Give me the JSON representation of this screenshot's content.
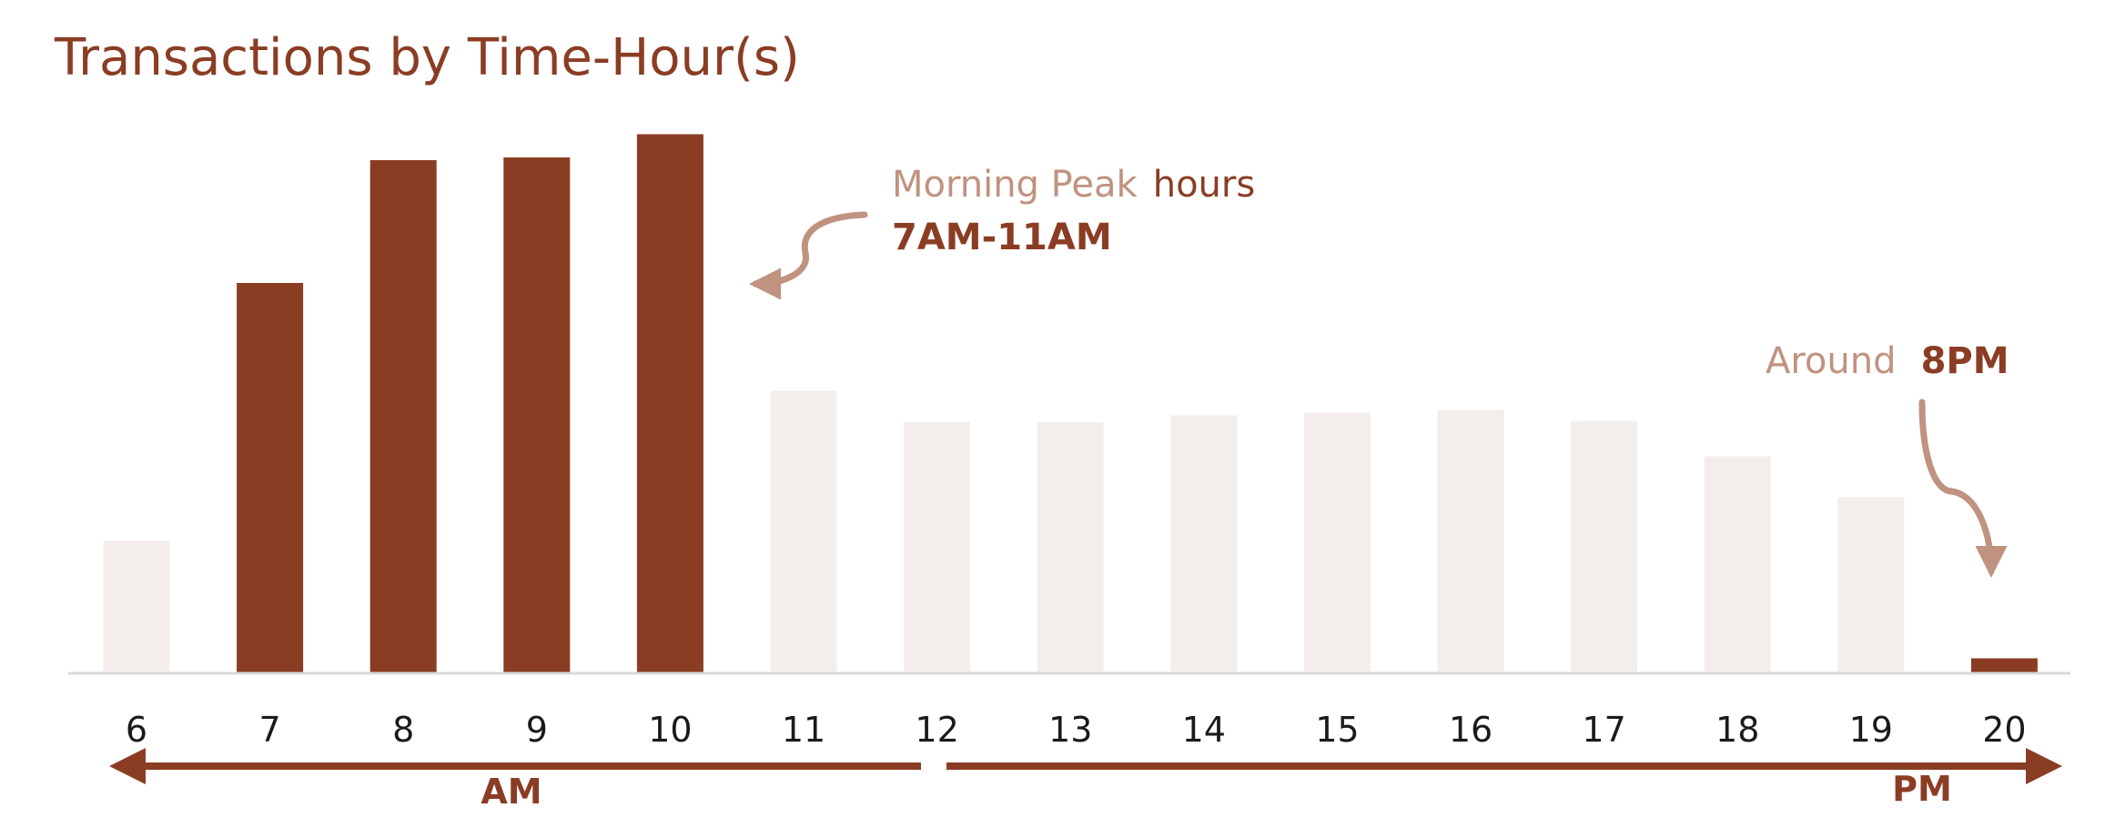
{
  "chart_data": {
    "type": "bar",
    "title": "Transactions by Time-Hour(s)",
    "xlabel": "",
    "ylabel": "",
    "categories": [
      "6",
      "7",
      "8",
      "9",
      "10",
      "11",
      "12",
      "13",
      "14",
      "15",
      "16",
      "17",
      "18",
      "19",
      "20"
    ],
    "values": [
      97,
      286,
      376,
      378,
      395,
      207,
      184,
      184,
      189,
      191,
      193,
      185,
      159,
      129,
      11
    ],
    "highlighted": [
      false,
      true,
      true,
      true,
      true,
      false,
      false,
      false,
      false,
      false,
      false,
      false,
      false,
      false,
      true
    ],
    "ylim": [
      0,
      400
    ],
    "grid": false,
    "legend": "none",
    "colors": {
      "highlight": "#8b3d24",
      "normal": "#f3eeeb",
      "annotation_light": "#c09280",
      "baseline": "#d9d9d9"
    },
    "annotations": {
      "morning_light": "Morning Peak",
      "morning_dark": "hours",
      "morning_range": "7AM-11AM",
      "evening_light": "Around",
      "evening_bold": "8PM"
    },
    "periods": {
      "am": "AM",
      "pm": "PM"
    }
  }
}
